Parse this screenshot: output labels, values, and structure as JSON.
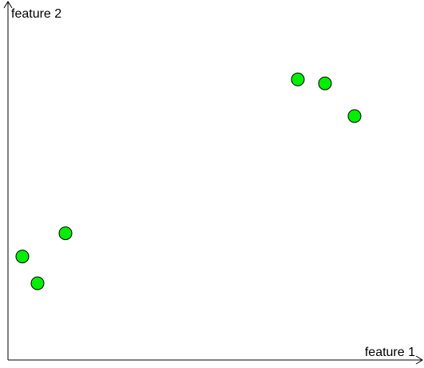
{
  "chart_data": {
    "type": "scatter",
    "title": "",
    "xlabel": "feature 1",
    "ylabel": "feature 2",
    "xlim": [
      0,
      100
    ],
    "ylim": [
      0,
      100
    ],
    "grid": false,
    "legend": "none",
    "series": [
      {
        "color": "#00ee00",
        "edge_color": "#000000",
        "points": [
          {
            "x": 3.6,
            "y": 29.4
          },
          {
            "x": 7.4,
            "y": 21.8
          },
          {
            "x": 14.4,
            "y": 36.0
          },
          {
            "x": 72.6,
            "y": 79.7
          },
          {
            "x": 79.4,
            "y": 78.6
          },
          {
            "x": 86.8,
            "y": 69.3
          }
        ]
      }
    ]
  }
}
